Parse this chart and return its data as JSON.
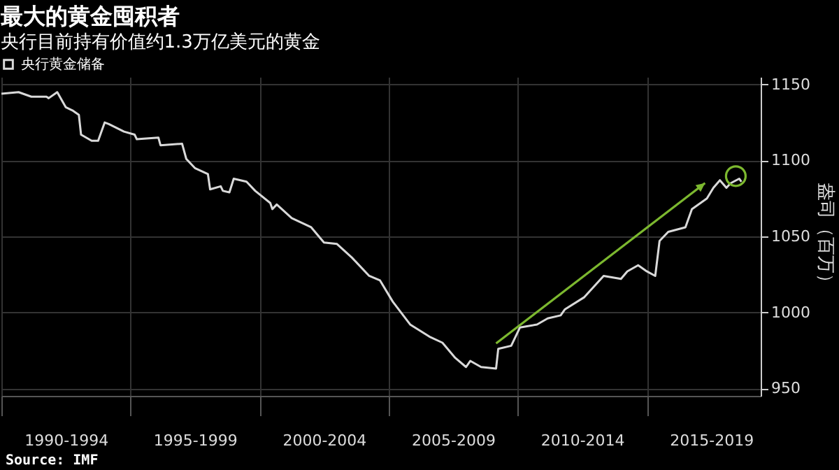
{
  "chart_data": {
    "type": "line",
    "title": "最大的黄金囤积者",
    "subtitle": "央行目前持有价值约1.3万亿美元的黄金",
    "ylabel": "盎司（百万）",
    "x": [
      "1990-01",
      "1990-09",
      "1991-03",
      "1991-10",
      "1991-11",
      "1992-03",
      "1992-07",
      "1992-10",
      "1993-01",
      "1993-02",
      "1993-07",
      "1993-10",
      "1994-01",
      "1994-03",
      "1994-10",
      "1995-03",
      "1995-04",
      "1996-02",
      "1996-03",
      "1997-01",
      "1997-03",
      "1997-07",
      "1998-01",
      "1998-02",
      "1998-07",
      "1998-08",
      "1998-11",
      "1999-01",
      "1999-07",
      "1999-11",
      "2000-06",
      "2000-07",
      "2000-09",
      "2001-04",
      "2002-01",
      "2002-07",
      "2003-01",
      "2003-08",
      "2004-04",
      "2004-09",
      "2005-03",
      "2005-11",
      "2006-08",
      "2007-02",
      "2007-08",
      "2008-01",
      "2008-03",
      "2008-08",
      "2009-03",
      "2009-04",
      "2009-10",
      "2010-02",
      "2010-10",
      "2011-03",
      "2011-09",
      "2011-11",
      "2012-08",
      "2013-05",
      "2014-01",
      "2014-04",
      "2014-09",
      "2015-01",
      "2015-05",
      "2015-07",
      "2015-11",
      "2016-07",
      "2016-10",
      "2017-05",
      "2017-08",
      "2017-11",
      "2018-02",
      "2018-04",
      "2018-08",
      "2018-09"
    ],
    "series": [
      {
        "name": "央行黄金储备",
        "color": "#d9d9d9",
        "values": [
          1144,
          1145,
          1142,
          1142,
          1141,
          1145,
          1135,
          1133,
          1130,
          1117,
          1113,
          1113,
          1125,
          1124,
          1119,
          1117,
          1114,
          1115,
          1110,
          1111,
          1101,
          1095,
          1091,
          1081,
          1083,
          1080,
          1079,
          1088,
          1086,
          1080,
          1072,
          1068,
          1071,
          1062,
          1056,
          1046,
          1045,
          1036,
          1024,
          1021,
          1007,
          992,
          984,
          980,
          970,
          964,
          968,
          964,
          963,
          976,
          978,
          990,
          992,
          996,
          998,
          1002,
          1010,
          1024,
          1022,
          1027,
          1031,
          1027,
          1024,
          1047,
          1053,
          1056,
          1068,
          1075,
          1082,
          1087,
          1082,
          1085,
          1088,
          1086
        ]
      }
    ],
    "xlim": [
      "1990-01",
      "2019-06"
    ],
    "xticks": [
      {
        "value": "1990-01",
        "label": null
      },
      {
        "value": "1992-07",
        "label": "1990-1994"
      },
      {
        "value": "1995-01",
        "label": null
      },
      {
        "value": "1997-07",
        "label": "1995-1999"
      },
      {
        "value": "2000-01",
        "label": null
      },
      {
        "value": "2002-07",
        "label": "2000-2004"
      },
      {
        "value": "2005-01",
        "label": null
      },
      {
        "value": "2007-07",
        "label": "2005-2009"
      },
      {
        "value": "2010-01",
        "label": null
      },
      {
        "value": "2012-07",
        "label": "2010-2014"
      },
      {
        "value": "2015-01",
        "label": null
      },
      {
        "value": "2017-07",
        "label": "2015-2019"
      }
    ],
    "ylim": [
      945,
      1155
    ],
    "yticks": [
      950,
      1000,
      1050,
      1100,
      1150
    ],
    "grid": true,
    "legend": "top left",
    "marker": "none",
    "line_style": "solid",
    "annotations": [
      "Source: IMF"
    ]
  }
}
